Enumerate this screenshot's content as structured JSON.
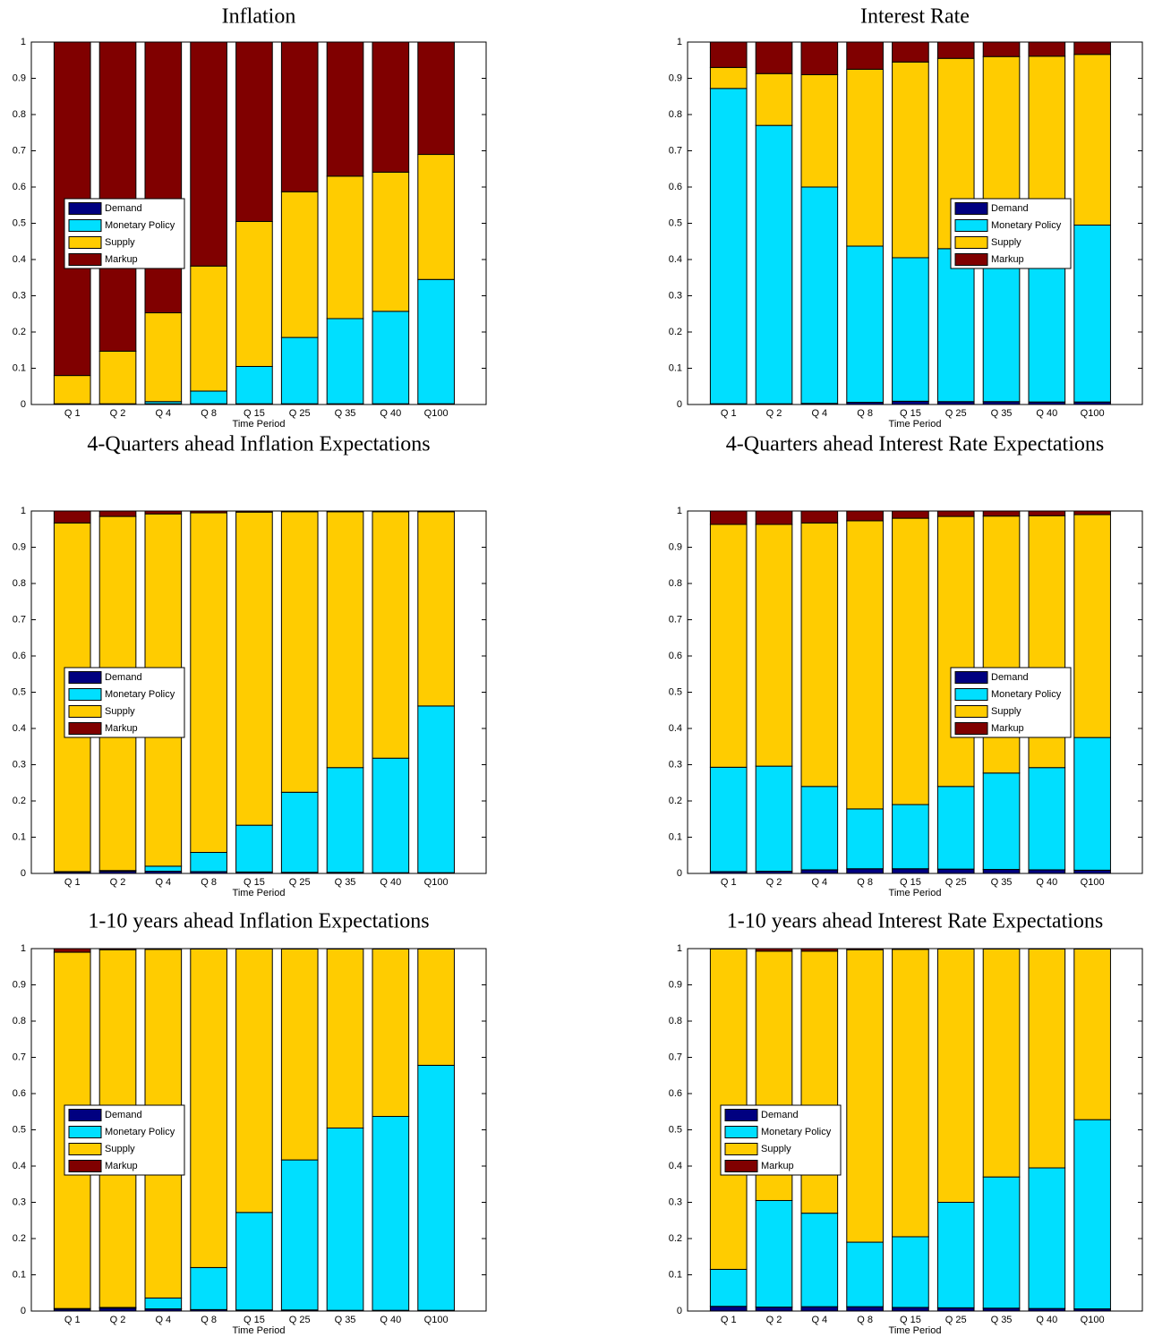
{
  "chart_data": [
    {
      "type": "bar",
      "stacked": true,
      "title": "Inflation",
      "xlabel": "Time Period",
      "categories": [
        "Q 1",
        "Q 2",
        "Q 4",
        "Q 8",
        "Q 15",
        "Q 25",
        "Q 35",
        "Q 40",
        "Q100"
      ],
      "series": [
        {
          "name": "Demand",
          "color": "#000080",
          "values": [
            0.001,
            0.001,
            0.002,
            0.002,
            0.002,
            0.002,
            0.002,
            0.002,
            0.002
          ]
        },
        {
          "name": "Monetary Policy",
          "color": "#00dfff",
          "values": [
            0.001,
            0.001,
            0.006,
            0.035,
            0.103,
            0.183,
            0.235,
            0.255,
            0.343
          ]
        },
        {
          "name": "Supply",
          "color": "#ffcc00",
          "values": [
            0.078,
            0.145,
            0.245,
            0.345,
            0.4,
            0.402,
            0.393,
            0.384,
            0.345
          ]
        },
        {
          "name": "Markup",
          "color": "#800000",
          "values": [
            0.92,
            0.853,
            0.747,
            0.618,
            0.495,
            0.413,
            0.37,
            0.359,
            0.31
          ]
        }
      ],
      "ylim": [
        0,
        1
      ],
      "yticks": [
        0,
        0.1,
        0.2,
        0.3,
        0.4,
        0.5,
        0.6,
        0.7,
        0.8,
        0.9,
        1
      ],
      "grid": false,
      "legend": "west"
    },
    {
      "type": "bar",
      "stacked": true,
      "title": "Interest Rate",
      "xlabel": "Time Period",
      "categories": [
        "Q 1",
        "Q 2",
        "Q 4",
        "Q 8",
        "Q 15",
        "Q 25",
        "Q 35",
        "Q 40",
        "Q100"
      ],
      "series": [
        {
          "name": "Demand",
          "color": "#000080",
          "values": [
            0.002,
            0.002,
            0.003,
            0.006,
            0.009,
            0.008,
            0.008,
            0.007,
            0.007
          ]
        },
        {
          "name": "Monetary Policy",
          "color": "#00dfff",
          "values": [
            0.87,
            0.768,
            0.597,
            0.431,
            0.396,
            0.422,
            0.422,
            0.433,
            0.488
          ]
        },
        {
          "name": "Supply",
          "color": "#ffcc00",
          "values": [
            0.058,
            0.143,
            0.31,
            0.488,
            0.54,
            0.525,
            0.53,
            0.521,
            0.471
          ]
        },
        {
          "name": "Markup",
          "color": "#800000",
          "values": [
            0.07,
            0.087,
            0.09,
            0.075,
            0.055,
            0.045,
            0.04,
            0.039,
            0.034
          ]
        }
      ],
      "ylim": [
        0,
        1
      ],
      "yticks": [
        0,
        0.1,
        0.2,
        0.3,
        0.4,
        0.5,
        0.6,
        0.7,
        0.8,
        0.9,
        1
      ],
      "grid": false,
      "legend": "east"
    },
    {
      "type": "bar",
      "stacked": true,
      "title": "4-Quarters ahead Inflation Expectations",
      "xlabel": "Time Period",
      "categories": [
        "Q 1",
        "Q 2",
        "Q 4",
        "Q 8",
        "Q 15",
        "Q 25",
        "Q 35",
        "Q 40",
        "Q100"
      ],
      "series": [
        {
          "name": "Demand",
          "color": "#000080",
          "values": [
            0.004,
            0.006,
            0.006,
            0.005,
            0.004,
            0.003,
            0.003,
            0.002,
            0.002
          ]
        },
        {
          "name": "Monetary Policy",
          "color": "#00dfff",
          "values": [
            0.001,
            0.002,
            0.014,
            0.053,
            0.129,
            0.221,
            0.289,
            0.316,
            0.46
          ]
        },
        {
          "name": "Supply",
          "color": "#ffcc00",
          "values": [
            0.962,
            0.977,
            0.972,
            0.937,
            0.864,
            0.774,
            0.706,
            0.68,
            0.536
          ]
        },
        {
          "name": "Markup",
          "color": "#800000",
          "values": [
            0.033,
            0.015,
            0.008,
            0.005,
            0.003,
            0.002,
            0.002,
            0.002,
            0.002
          ]
        }
      ],
      "ylim": [
        0,
        1
      ],
      "yticks": [
        0,
        0.1,
        0.2,
        0.3,
        0.4,
        0.5,
        0.6,
        0.7,
        0.8,
        0.9,
        1
      ],
      "grid": false,
      "legend": "west"
    },
    {
      "type": "bar",
      "stacked": true,
      "title": "4-Quarters ahead Interest Rate Expectations",
      "xlabel": "Time Period",
      "categories": [
        "Q 1",
        "Q 2",
        "Q 4",
        "Q 8",
        "Q 15",
        "Q 25",
        "Q 35",
        "Q 40",
        "Q100"
      ],
      "series": [
        {
          "name": "Demand",
          "color": "#000080",
          "values": [
            0.005,
            0.006,
            0.01,
            0.013,
            0.013,
            0.012,
            0.011,
            0.01,
            0.009
          ]
        },
        {
          "name": "Monetary Policy",
          "color": "#00dfff",
          "values": [
            0.288,
            0.29,
            0.23,
            0.165,
            0.177,
            0.228,
            0.266,
            0.282,
            0.366
          ]
        },
        {
          "name": "Supply",
          "color": "#ffcc00",
          "values": [
            0.67,
            0.667,
            0.727,
            0.795,
            0.79,
            0.745,
            0.709,
            0.695,
            0.615
          ]
        },
        {
          "name": "Markup",
          "color": "#800000",
          "values": [
            0.037,
            0.037,
            0.033,
            0.027,
            0.02,
            0.015,
            0.014,
            0.013,
            0.01
          ]
        }
      ],
      "ylim": [
        0,
        1
      ],
      "yticks": [
        0,
        0.1,
        0.2,
        0.3,
        0.4,
        0.5,
        0.6,
        0.7,
        0.8,
        0.9,
        1
      ],
      "grid": false,
      "legend": "east"
    },
    {
      "type": "bar",
      "stacked": true,
      "title": "1-10 years ahead Inflation Expectations",
      "xlabel": "Time Period",
      "categories": [
        "Q 1",
        "Q 2",
        "Q 4",
        "Q 8",
        "Q 15",
        "Q 25",
        "Q 35",
        "Q 40",
        "Q100"
      ],
      "series": [
        {
          "name": "Demand",
          "color": "#000080",
          "values": [
            0.005,
            0.008,
            0.006,
            0.004,
            0.003,
            0.003,
            0.002,
            0.002,
            0.002
          ]
        },
        {
          "name": "Monetary Policy",
          "color": "#00dfff",
          "values": [
            0.002,
            0.002,
            0.03,
            0.116,
            0.269,
            0.414,
            0.503,
            0.535,
            0.676
          ]
        },
        {
          "name": "Supply",
          "color": "#ffcc00",
          "values": [
            0.983,
            0.987,
            0.962,
            0.879,
            0.727,
            0.582,
            0.494,
            0.462,
            0.321
          ]
        },
        {
          "name": "Markup",
          "color": "#800000",
          "values": [
            0.01,
            0.003,
            0.002,
            0.001,
            0.001,
            0.001,
            0.001,
            0.001,
            0.001
          ]
        }
      ],
      "ylim": [
        0,
        1
      ],
      "yticks": [
        0,
        0.1,
        0.2,
        0.3,
        0.4,
        0.5,
        0.6,
        0.7,
        0.8,
        0.9,
        1
      ],
      "grid": false,
      "legend": "west"
    },
    {
      "type": "bar",
      "stacked": true,
      "title": "1-10 years ahead Interest Rate Expectations",
      "xlabel": "Time Period",
      "categories": [
        "Q 1",
        "Q 2",
        "Q 4",
        "Q 8",
        "Q 15",
        "Q 25",
        "Q 35",
        "Q 40",
        "Q100"
      ],
      "series": [
        {
          "name": "Demand",
          "color": "#000080",
          "values": [
            0.013,
            0.011,
            0.012,
            0.012,
            0.01,
            0.009,
            0.008,
            0.007,
            0.006
          ]
        },
        {
          "name": "Monetary Policy",
          "color": "#00dfff",
          "values": [
            0.102,
            0.294,
            0.258,
            0.178,
            0.195,
            0.291,
            0.362,
            0.388,
            0.522
          ]
        },
        {
          "name": "Supply",
          "color": "#ffcc00",
          "values": [
            0.884,
            0.688,
            0.723,
            0.807,
            0.793,
            0.699,
            0.629,
            0.604,
            0.471
          ]
        },
        {
          "name": "Markup",
          "color": "#800000",
          "values": [
            0.001,
            0.007,
            0.007,
            0.003,
            0.002,
            0.001,
            0.001,
            0.001,
            0.001
          ]
        }
      ],
      "ylim": [
        0,
        1
      ],
      "yticks": [
        0,
        0.1,
        0.2,
        0.3,
        0.4,
        0.5,
        0.6,
        0.7,
        0.8,
        0.9,
        1
      ],
      "grid": false,
      "legend": "west"
    }
  ]
}
